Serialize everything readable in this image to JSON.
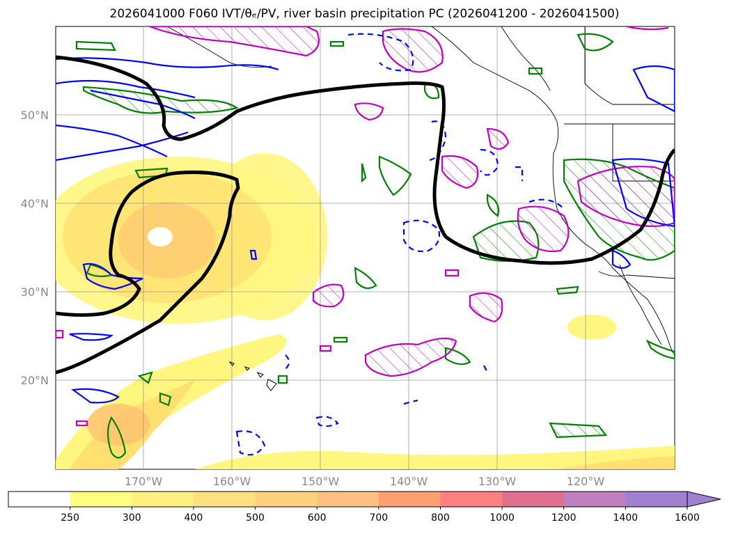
{
  "title": "2026041000 F060 IVT/θₑ/PV, river basin precipitation PC (2026041200 - 2026041500)",
  "lat_labels": [
    "50°N",
    "40°N",
    "30°N",
    "20°N"
  ],
  "lon_labels": [
    "170°W",
    "160°W",
    "150°W",
    "140°W",
    "130°W",
    "120°W"
  ],
  "colorbar": {
    "ticks": [
      "250",
      "300",
      "400",
      "500",
      "600",
      "700",
      "800",
      "1000",
      "1200",
      "1400",
      "1600"
    ],
    "colors": [
      "#ffffff",
      "#ffff80",
      "#fff080",
      "#ffe080",
      "#ffd080",
      "#ffc080",
      "#ffa070",
      "#ff8080",
      "#e07090",
      "#c080c0",
      "#a080d0"
    ]
  },
  "colors": {
    "ivt_fill_light": "#fff680",
    "ivt_fill_mid": "#ffe070",
    "ivt_fill_dark": "#ffb870",
    "theta_contour": "#000000",
    "pv_contour": "#0000ff",
    "precip_green": "#008000",
    "precip_magenta": "#c000c0",
    "grid": "#999999",
    "coast": "#000000"
  }
}
